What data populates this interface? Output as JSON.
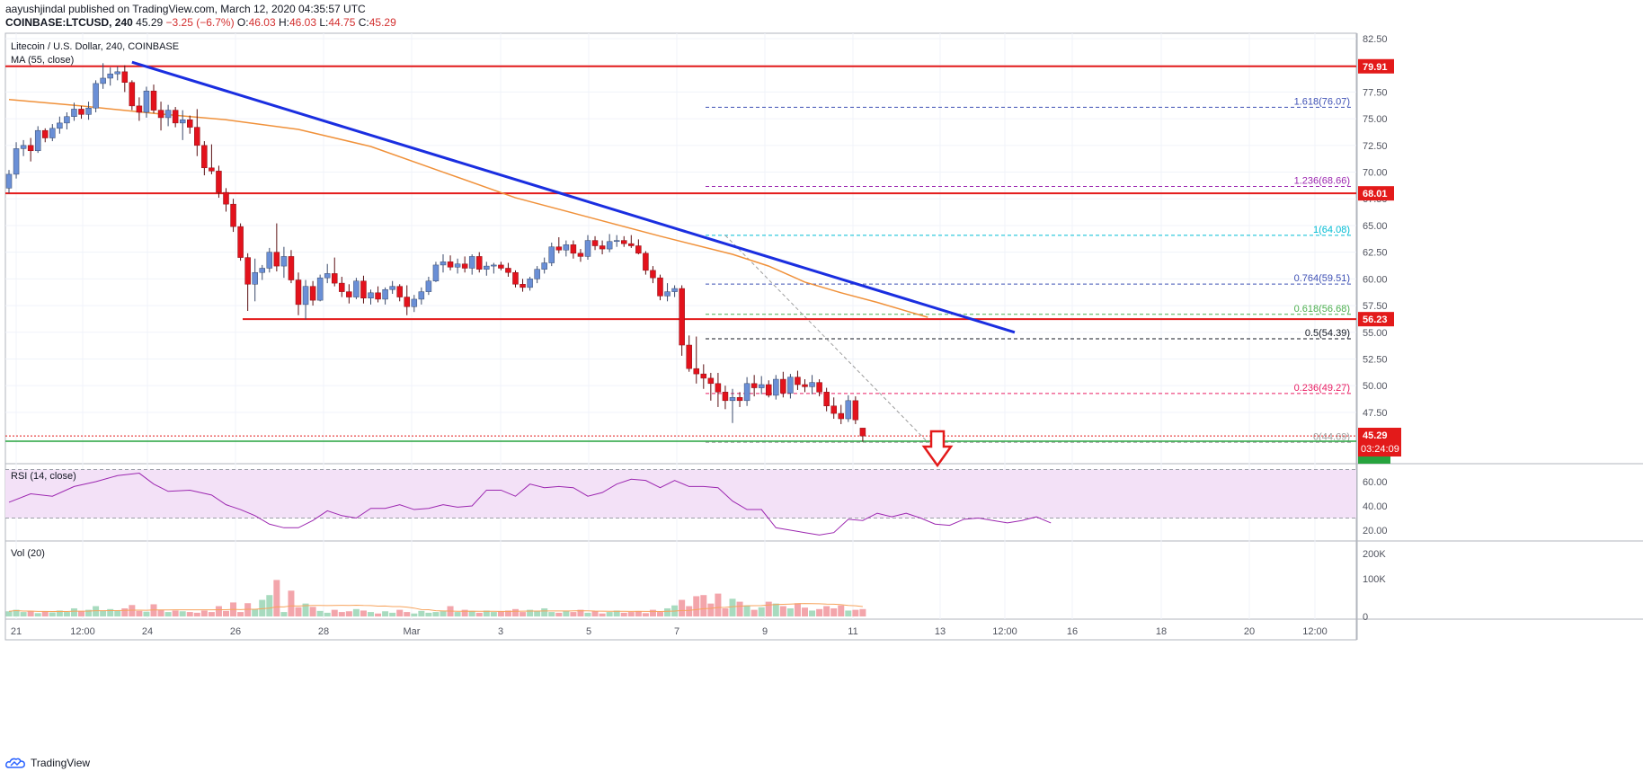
{
  "header": {
    "line1_author": "aayushjindal",
    "line1_rest": "published on TradingView.com, March 12, 2020 04:35:57 UTC",
    "symbol": "COINBASE:LTCUSD, 240",
    "last": "45.29",
    "change": "−3.25 (−6.7%)",
    "o_label": "O:",
    "o": "46.03",
    "h_label": "H:",
    "h": "46.03",
    "l_label": "L:",
    "l": "44.75",
    "c_label": "C:",
    "c": "45.29"
  },
  "legend": {
    "title": "Litecoin / U.S. Dollar, 240, COINBASE",
    "ma": "MA (55, close)",
    "rsi": "RSI (14, close)",
    "vol": "Vol (20)"
  },
  "brand": "TradingView",
  "colors": {
    "up": "#6a8fd6",
    "down": "#e3121c",
    "ma": "#f0913a",
    "trend": "#1a2ee0",
    "support": "#e31a1a",
    "green_line": "#27a33e",
    "rsi": "#9c27b0",
    "rsi_band": "#f3e1f7",
    "vol_up": "#a8dbbf",
    "vol_down": "#f3a5ab",
    "arrow": "#e31a1a"
  },
  "chart_data": {
    "type": "candlestick",
    "price_axis": {
      "ylim": [
        44.69,
        82.5
      ],
      "ticks": [
        "82.50",
        "80.00",
        "77.50",
        "75.00",
        "72.50",
        "70.00",
        "67.50",
        "65.00",
        "62.50",
        "60.00",
        "57.50",
        "55.00",
        "52.50",
        "50.00",
        "47.50"
      ]
    },
    "rsi_axis": {
      "ticks": [
        "60.00",
        "40.00",
        "20.00"
      ],
      "band": [
        30,
        70
      ]
    },
    "vol_axis": {
      "ticks": [
        "200K",
        "100K",
        "0"
      ]
    },
    "time_labels": [
      "21",
      "12:00",
      "24",
      "26",
      "28",
      "Mar",
      "3",
      "5",
      "7",
      "9",
      "11",
      "13",
      "12:00",
      "16",
      "18",
      "20",
      "12:00"
    ],
    "horizontal_levels": [
      {
        "price": 79.91,
        "label": "79.91",
        "color": "red"
      },
      {
        "price": 68.01,
        "label": "68.01",
        "color": "red"
      },
      {
        "price": 56.23,
        "label": "56.23",
        "color": "red"
      }
    ],
    "current_price": {
      "label": "45.29",
      "countdown": "03:24:09"
    },
    "low_badge": "44.69",
    "fibonacci": [
      {
        "label": "1.618(76.07)",
        "price": 76.07
      },
      {
        "label": "1.236(68.66)",
        "price": 68.66
      },
      {
        "label": "1(64.08)",
        "price": 64.08
      },
      {
        "label": "0.764(59.51)",
        "price": 59.51
      },
      {
        "label": "0.618(56.68)",
        "price": 56.68
      },
      {
        "label": "0.5(54.39)",
        "price": 54.39
      },
      {
        "label": "0.236(49.27)",
        "price": 49.27
      },
      {
        "label": "0(44.69)",
        "price": 44.69
      }
    ],
    "candles": [
      [
        68.5,
        70.2,
        68.0,
        69.8
      ],
      [
        69.8,
        72.8,
        69.4,
        72.2
      ],
      [
        72.2,
        73.0,
        71.5,
        72.5
      ],
      [
        72.5,
        73.2,
        71.0,
        72.0
      ],
      [
        72.0,
        74.3,
        71.8,
        73.9
      ],
      [
        73.9,
        74.1,
        72.8,
        73.2
      ],
      [
        73.2,
        74.5,
        72.9,
        74.1
      ],
      [
        74.1,
        75.2,
        73.6,
        74.6
      ],
      [
        74.6,
        75.6,
        74.0,
        75.2
      ],
      [
        75.2,
        76.5,
        74.8,
        75.9
      ],
      [
        75.9,
        76.2,
        75.0,
        75.4
      ],
      [
        75.4,
        76.6,
        74.9,
        76.0
      ],
      [
        76.0,
        78.6,
        75.6,
        78.3
      ],
      [
        78.3,
        80.2,
        77.8,
        78.8
      ],
      [
        78.8,
        79.8,
        78.1,
        79.2
      ],
      [
        79.2,
        79.9,
        78.6,
        79.4
      ],
      [
        79.4,
        80.0,
        77.5,
        78.4
      ],
      [
        78.4,
        78.6,
        75.8,
        76.2
      ],
      [
        76.2,
        77.0,
        74.8,
        75.6
      ],
      [
        75.6,
        78.0,
        75.1,
        77.6
      ],
      [
        77.6,
        78.2,
        75.5,
        75.8
      ],
      [
        75.8,
        76.6,
        73.9,
        75.1
      ],
      [
        75.1,
        76.3,
        74.3,
        75.8
      ],
      [
        75.8,
        76.1,
        74.2,
        74.6
      ],
      [
        74.6,
        75.8,
        73.0,
        74.9
      ],
      [
        74.9,
        75.3,
        73.6,
        74.2
      ],
      [
        74.2,
        75.9,
        71.5,
        72.5
      ],
      [
        72.5,
        72.9,
        69.7,
        70.4
      ],
      [
        70.4,
        72.6,
        69.8,
        70.1
      ],
      [
        70.1,
        70.6,
        67.6,
        68.1
      ],
      [
        68.1,
        68.5,
        66.3,
        67.0
      ],
      [
        67.0,
        67.5,
        64.4,
        64.9
      ],
      [
        64.9,
        65.2,
        61.7,
        62.0
      ],
      [
        62.0,
        62.4,
        57.0,
        59.5
      ],
      [
        59.5,
        61.9,
        57.9,
        60.6
      ],
      [
        60.6,
        61.3,
        59.9,
        61.0
      ],
      [
        61.0,
        62.9,
        60.6,
        62.5
      ],
      [
        62.5,
        65.2,
        60.7,
        61.2
      ],
      [
        61.2,
        63.0,
        60.1,
        62.1
      ],
      [
        62.1,
        62.7,
        59.6,
        59.9
      ],
      [
        59.9,
        60.6,
        56.6,
        57.6
      ],
      [
        57.6,
        59.9,
        56.2,
        59.3
      ],
      [
        59.3,
        59.8,
        57.5,
        58.0
      ],
      [
        58.0,
        60.4,
        57.9,
        60.1
      ],
      [
        60.1,
        61.4,
        59.6,
        60.5
      ],
      [
        60.5,
        62.0,
        59.3,
        59.6
      ],
      [
        59.6,
        60.2,
        58.3,
        58.8
      ],
      [
        58.8,
        59.5,
        57.7,
        58.3
      ],
      [
        58.3,
        60.1,
        58.1,
        59.8
      ],
      [
        59.8,
        60.3,
        57.7,
        58.2
      ],
      [
        58.2,
        59.0,
        57.6,
        58.7
      ],
      [
        58.7,
        59.3,
        57.8,
        58.1
      ],
      [
        58.1,
        59.2,
        57.6,
        59.0
      ],
      [
        59.0,
        59.8,
        58.6,
        59.3
      ],
      [
        59.3,
        59.5,
        57.9,
        58.3
      ],
      [
        58.3,
        59.4,
        56.6,
        57.4
      ],
      [
        57.4,
        58.5,
        56.9,
        58.1
      ],
      [
        58.1,
        59.2,
        57.6,
        58.8
      ],
      [
        58.8,
        60.2,
        58.5,
        59.8
      ],
      [
        59.8,
        61.6,
        59.7,
        61.3
      ],
      [
        61.3,
        62.3,
        60.6,
        61.6
      ],
      [
        61.6,
        62.2,
        60.8,
        61.1
      ],
      [
        61.1,
        61.9,
        60.5,
        61.4
      ],
      [
        61.4,
        62.1,
        60.6,
        61.0
      ],
      [
        61.0,
        62.3,
        60.4,
        62.1
      ],
      [
        62.1,
        62.5,
        60.6,
        60.9
      ],
      [
        60.9,
        61.6,
        60.3,
        61.2
      ],
      [
        61.2,
        61.5,
        60.5,
        61.3
      ],
      [
        61.3,
        61.6,
        60.8,
        61.0
      ],
      [
        61.0,
        61.5,
        60.2,
        60.6
      ],
      [
        60.6,
        60.8,
        59.2,
        59.5
      ],
      [
        59.5,
        60.0,
        58.8,
        59.2
      ],
      [
        59.2,
        60.2,
        58.9,
        60.0
      ],
      [
        60.0,
        61.2,
        59.6,
        60.9
      ],
      [
        60.9,
        62.0,
        60.5,
        61.5
      ],
      [
        61.5,
        63.4,
        61.2,
        63.0
      ],
      [
        63.0,
        63.9,
        62.4,
        62.7
      ],
      [
        62.7,
        63.6,
        62.1,
        63.2
      ],
      [
        63.2,
        63.6,
        61.9,
        62.4
      ],
      [
        62.4,
        62.8,
        61.6,
        62.1
      ],
      [
        62.1,
        64.1,
        61.8,
        63.6
      ],
      [
        63.6,
        64.0,
        62.7,
        63.1
      ],
      [
        63.1,
        63.6,
        62.3,
        62.8
      ],
      [
        62.8,
        64.2,
        62.5,
        63.5
      ],
      [
        63.5,
        64.1,
        63.0,
        63.6
      ],
      [
        63.6,
        64.0,
        63.0,
        63.3
      ],
      [
        63.3,
        64.1,
        62.9,
        63.1
      ],
      [
        63.1,
        63.7,
        62.3,
        62.4
      ],
      [
        62.4,
        62.6,
        60.4,
        60.8
      ],
      [
        60.8,
        61.2,
        59.6,
        60.1
      ],
      [
        60.1,
        60.4,
        58.0,
        58.4
      ],
      [
        58.4,
        59.6,
        57.9,
        58.8
      ],
      [
        58.8,
        59.4,
        58.3,
        59.1
      ],
      [
        59.1,
        59.4,
        52.8,
        53.8
      ],
      [
        53.8,
        54.7,
        51.3,
        51.6
      ],
      [
        51.6,
        54.6,
        50.2,
        51.1
      ],
      [
        51.1,
        52.0,
        49.7,
        50.7
      ],
      [
        50.7,
        51.2,
        48.6,
        50.2
      ],
      [
        50.2,
        51.2,
        48.0,
        49.4
      ],
      [
        49.4,
        50.0,
        47.8,
        48.6
      ],
      [
        48.6,
        49.7,
        46.5,
        48.9
      ],
      [
        48.9,
        49.4,
        48.0,
        48.6
      ],
      [
        48.6,
        50.8,
        48.1,
        50.2
      ],
      [
        50.2,
        51.0,
        49.0,
        49.8
      ],
      [
        49.8,
        50.9,
        49.2,
        50.1
      ],
      [
        50.1,
        50.5,
        48.9,
        49.1
      ],
      [
        49.1,
        51.0,
        48.7,
        50.6
      ],
      [
        50.6,
        51.3,
        48.9,
        49.3
      ],
      [
        49.3,
        51.1,
        48.8,
        50.8
      ],
      [
        50.8,
        51.4,
        49.6,
        50.1
      ],
      [
        50.1,
        50.6,
        49.4,
        49.9
      ],
      [
        49.9,
        51.0,
        49.2,
        50.3
      ],
      [
        50.3,
        50.6,
        49.0,
        49.4
      ],
      [
        49.4,
        49.8,
        47.6,
        48.1
      ],
      [
        48.1,
        48.9,
        46.9,
        47.4
      ],
      [
        47.4,
        48.2,
        46.4,
        46.9
      ],
      [
        46.9,
        49.1,
        46.6,
        48.6
      ],
      [
        48.6,
        49.0,
        46.4,
        46.8
      ],
      [
        46.03,
        46.03,
        44.75,
        45.29
      ]
    ],
    "ma55": [
      [
        0,
        76.8
      ],
      [
        10,
        76.2
      ],
      [
        20,
        75.5
      ],
      [
        30,
        74.9
      ],
      [
        40,
        74.0
      ],
      [
        50,
        72.4
      ],
      [
        60,
        70.0
      ],
      [
        70,
        67.6
      ],
      [
        80,
        65.8
      ],
      [
        90,
        64.0
      ],
      [
        100,
        62.3
      ],
      [
        105,
        61.2
      ],
      [
        110,
        59.7
      ],
      [
        115,
        58.7
      ],
      [
        120,
        57.8
      ],
      [
        127,
        56.4
      ]
    ],
    "trendline": {
      "from": [
        17,
        80.3
      ],
      "to": [
        139,
        55.0
      ]
    },
    "fib_diagonal": {
      "from": [
        99,
        64.08
      ],
      "to": [
        127,
        44.69
      ]
    },
    "rsi": [
      [
        0,
        43
      ],
      [
        3,
        50
      ],
      [
        6,
        48
      ],
      [
        9,
        56
      ],
      [
        12,
        60
      ],
      [
        15,
        65
      ],
      [
        18,
        67
      ],
      [
        20,
        58
      ],
      [
        22,
        52
      ],
      [
        25,
        53
      ],
      [
        28,
        49
      ],
      [
        30,
        41
      ],
      [
        32,
        37
      ],
      [
        34,
        32
      ],
      [
        36,
        25
      ],
      [
        38,
        22
      ],
      [
        40,
        22
      ],
      [
        42,
        28
      ],
      [
        44,
        36
      ],
      [
        46,
        32
      ],
      [
        48,
        30
      ],
      [
        50,
        38
      ],
      [
        52,
        38
      ],
      [
        54,
        41
      ],
      [
        56,
        37
      ],
      [
        58,
        38
      ],
      [
        60,
        41
      ],
      [
        62,
        39
      ],
      [
        64,
        40
      ],
      [
        66,
        53
      ],
      [
        68,
        53
      ],
      [
        70,
        48
      ],
      [
        72,
        58
      ],
      [
        74,
        55
      ],
      [
        76,
        56
      ],
      [
        78,
        55
      ],
      [
        80,
        48
      ],
      [
        82,
        51
      ],
      [
        84,
        58
      ],
      [
        86,
        62
      ],
      [
        88,
        61
      ],
      [
        90,
        55
      ],
      [
        92,
        61
      ],
      [
        94,
        56
      ],
      [
        96,
        56
      ],
      [
        98,
        55
      ],
      [
        100,
        44
      ],
      [
        102,
        37
      ],
      [
        104,
        37
      ],
      [
        106,
        22
      ],
      [
        108,
        20
      ],
      [
        110,
        18
      ],
      [
        112,
        16
      ],
      [
        114,
        18
      ],
      [
        116,
        29
      ],
      [
        118,
        28
      ],
      [
        120,
        34
      ],
      [
        122,
        31
      ],
      [
        124,
        34
      ],
      [
        126,
        30
      ],
      [
        128,
        25
      ],
      [
        130,
        24
      ],
      [
        132,
        29
      ],
      [
        134,
        30
      ],
      [
        136,
        28
      ],
      [
        138,
        26
      ],
      [
        140,
        28
      ],
      [
        142,
        31
      ],
      [
        144,
        26
      ]
    ],
    "volume": [
      14,
      18,
      12,
      15,
      9,
      14,
      11,
      16,
      12,
      22,
      14,
      18,
      28,
      16,
      20,
      17,
      22,
      31,
      15,
      13,
      33,
      18,
      12,
      16,
      14,
      12,
      10,
      16,
      12,
      28,
      15,
      38,
      12,
      36,
      20,
      45,
      58,
      99,
      12,
      70,
      25,
      35,
      26,
      15,
      10,
      18,
      12,
      14,
      20,
      16,
      12,
      8,
      14,
      10,
      18,
      12,
      8,
      15,
      10,
      12,
      14,
      28,
      12,
      18,
      15,
      10,
      16,
      12,
      14,
      16,
      20,
      12,
      18,
      14,
      22,
      12,
      10,
      15,
      12,
      18,
      10,
      14,
      8,
      12,
      16,
      10,
      12,
      14,
      9,
      18,
      12,
      22,
      30,
      45,
      28,
      55,
      58,
      35,
      62,
      22,
      48,
      40,
      30,
      18,
      25,
      40,
      35,
      28,
      22,
      36,
      24,
      16,
      20,
      28,
      22,
      30,
      16,
      18,
      20
    ]
  }
}
